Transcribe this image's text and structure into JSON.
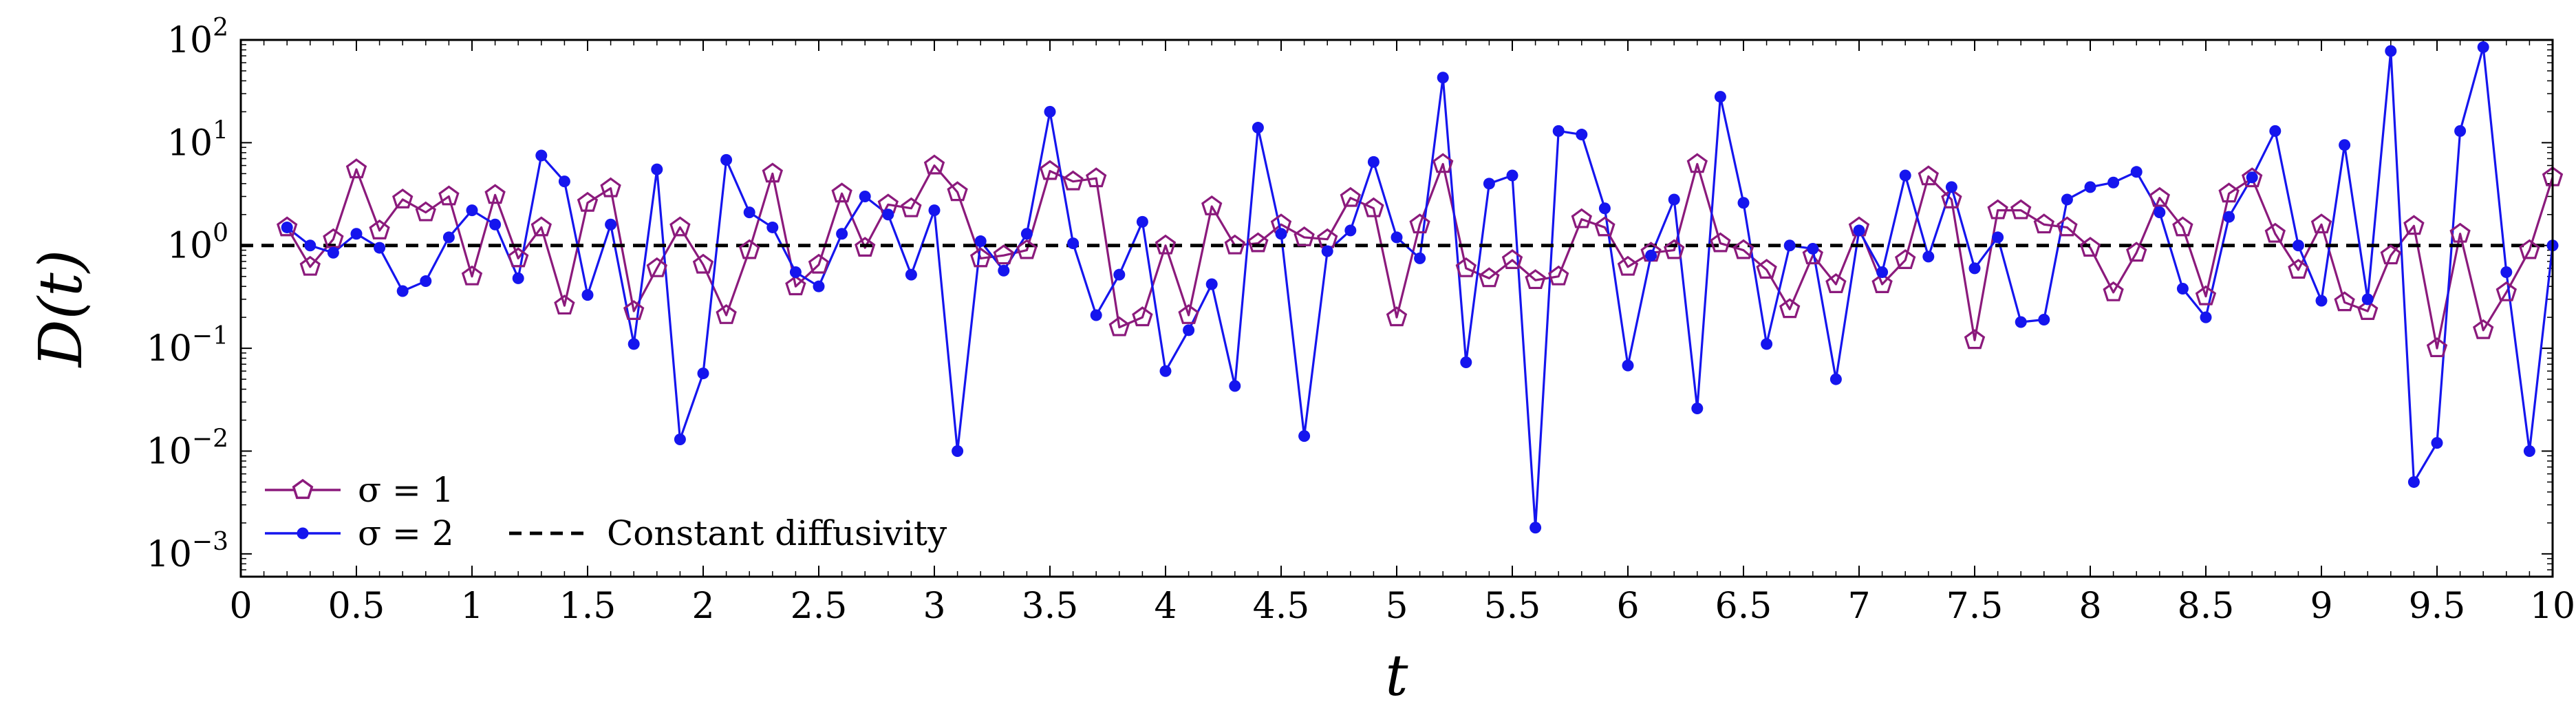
{
  "chart_data": {
    "type": "line",
    "title": "",
    "xlabel": "t",
    "ylabel": "D(t)",
    "xlim": [
      0,
      10
    ],
    "ylim": [
      0.0006,
      100
    ],
    "yscale": "log",
    "x_ticks": [
      0,
      0.5,
      1,
      1.5,
      2,
      2.5,
      3,
      3.5,
      4,
      4.5,
      5,
      5.5,
      6,
      6.5,
      7,
      7.5,
      8,
      8.5,
      9,
      9.5,
      10
    ],
    "x_tick_labels": [
      "0",
      "0.5",
      "1",
      "1.5",
      "2",
      "2.5",
      "3",
      "3.5",
      "4",
      "4.5",
      "5",
      "5.5",
      "6",
      "6.5",
      "7",
      "7.5",
      "8",
      "8.5",
      "9",
      "9.5",
      "10"
    ],
    "y_ticks": [
      {
        "value": 0.001,
        "base": "10",
        "exp": "−3"
      },
      {
        "value": 0.01,
        "base": "10",
        "exp": "−2"
      },
      {
        "value": 0.1,
        "base": "10",
        "exp": "−1"
      },
      {
        "value": 1,
        "base": "10",
        "exp": "0"
      },
      {
        "value": 10,
        "base": "10",
        "exp": "1"
      },
      {
        "value": 100,
        "base": "10",
        "exp": "2"
      }
    ],
    "legend_position": "bottom-left",
    "series": [
      {
        "name": "σ = 1",
        "legend_label": "σ = 1",
        "color": "#8b1a7c",
        "marker": "pentagon",
        "x": [
          0.2,
          0.3,
          0.4,
          0.5,
          0.6,
          0.7,
          0.8,
          0.9,
          1.0,
          1.1,
          1.2,
          1.3,
          1.4,
          1.5,
          1.6,
          1.7,
          1.8,
          1.9,
          2.0,
          2.1,
          2.2,
          2.3,
          2.4,
          2.5,
          2.6,
          2.7,
          2.8,
          2.9,
          3.0,
          3.1,
          3.2,
          3.3,
          3.4,
          3.5,
          3.6,
          3.7,
          3.8,
          3.9,
          4.0,
          4.1,
          4.2,
          4.3,
          4.4,
          4.5,
          4.6,
          4.7,
          4.8,
          4.9,
          5.0,
          5.1,
          5.2,
          5.3,
          5.4,
          5.5,
          5.6,
          5.7,
          5.8,
          5.9,
          6.0,
          6.1,
          6.2,
          6.3,
          6.4,
          6.5,
          6.6,
          6.7,
          6.8,
          6.9,
          7.0,
          7.1,
          7.2,
          7.3,
          7.4,
          7.5,
          7.6,
          7.7,
          7.8,
          7.9,
          8.0,
          8.1,
          8.2,
          8.3,
          8.4,
          8.5,
          8.6,
          8.7,
          8.8,
          8.9,
          9.0,
          9.1,
          9.2,
          9.3,
          9.4,
          9.5,
          9.6,
          9.7,
          9.8,
          9.9,
          10.0
        ],
        "values": [
          1.5,
          0.62,
          1.15,
          5.5,
          1.4,
          2.8,
          2.1,
          3.0,
          0.5,
          3.1,
          0.75,
          1.5,
          0.26,
          2.6,
          3.6,
          0.23,
          0.6,
          1.5,
          0.65,
          0.21,
          0.9,
          5.0,
          0.4,
          0.65,
          3.2,
          0.95,
          2.5,
          2.3,
          6.0,
          3.3,
          0.75,
          0.8,
          0.9,
          5.3,
          4.2,
          4.5,
          0.16,
          0.2,
          1.0,
          0.21,
          2.4,
          1.0,
          1.05,
          1.6,
          1.2,
          1.15,
          2.9,
          2.3,
          0.2,
          1.6,
          6.2,
          0.6,
          0.48,
          0.72,
          0.46,
          0.5,
          1.8,
          1.5,
          0.62,
          0.85,
          0.9,
          6.2,
          1.05,
          0.9,
          0.58,
          0.24,
          0.8,
          0.42,
          1.5,
          0.42,
          0.72,
          4.7,
          2.8,
          0.12,
          2.2,
          2.2,
          1.6,
          1.5,
          0.95,
          0.35,
          0.85,
          2.9,
          1.5,
          0.32,
          3.2,
          4.5,
          1.3,
          0.58,
          1.6,
          0.28,
          0.23,
          0.8,
          1.55,
          0.1,
          1.3,
          0.15,
          0.35,
          0.9,
          4.6
        ]
      },
      {
        "name": "σ = 2",
        "legend_label": "σ = 2",
        "color": "#1515ee",
        "marker": "dot",
        "x": [
          0.2,
          0.3,
          0.4,
          0.5,
          0.6,
          0.7,
          0.8,
          0.9,
          1.0,
          1.1,
          1.2,
          1.3,
          1.4,
          1.5,
          1.6,
          1.7,
          1.8,
          1.9,
          2.0,
          2.1,
          2.2,
          2.3,
          2.4,
          2.5,
          2.6,
          2.7,
          2.8,
          2.9,
          3.0,
          3.1,
          3.2,
          3.3,
          3.4,
          3.5,
          3.6,
          3.7,
          3.8,
          3.9,
          4.0,
          4.1,
          4.2,
          4.3,
          4.4,
          4.5,
          4.6,
          4.7,
          4.8,
          4.9,
          5.0,
          5.1,
          5.2,
          5.3,
          5.4,
          5.5,
          5.6,
          5.7,
          5.8,
          5.9,
          6.0,
          6.1,
          6.2,
          6.3,
          6.4,
          6.5,
          6.6,
          6.7,
          6.8,
          6.9,
          7.0,
          7.1,
          7.2,
          7.3,
          7.4,
          7.5,
          7.6,
          7.7,
          7.8,
          7.9,
          8.0,
          8.1,
          8.2,
          8.3,
          8.4,
          8.5,
          8.6,
          8.7,
          8.8,
          8.9,
          9.0,
          9.1,
          9.2,
          9.3,
          9.4,
          9.5,
          9.6,
          9.7,
          9.8,
          9.9,
          10.0
        ],
        "values": [
          1.5,
          1.0,
          0.85,
          1.3,
          0.95,
          0.36,
          0.45,
          1.2,
          2.2,
          1.6,
          0.48,
          7.5,
          4.2,
          0.33,
          1.6,
          0.11,
          5.5,
          0.013,
          0.057,
          6.8,
          2.1,
          1.5,
          0.55,
          0.4,
          1.3,
          3.0,
          2.0,
          0.52,
          2.2,
          0.01,
          1.1,
          0.57,
          1.3,
          20.0,
          1.05,
          0.21,
          0.52,
          1.7,
          0.06,
          0.15,
          0.42,
          0.043,
          14.0,
          1.3,
          0.014,
          0.88,
          1.4,
          6.5,
          1.2,
          0.75,
          43.0,
          0.073,
          4.0,
          4.8,
          0.0018,
          13.0,
          12.0,
          2.3,
          0.068,
          0.8,
          2.8,
          0.026,
          28.0,
          2.6,
          0.11,
          1.0,
          0.93,
          0.05,
          1.4,
          0.55,
          4.8,
          0.78,
          3.7,
          0.6,
          1.2,
          0.18,
          0.19,
          2.8,
          3.7,
          4.1,
          5.2,
          2.1,
          0.38,
          0.2,
          1.9,
          4.6,
          13.0,
          1.0,
          0.29,
          9.5,
          0.3,
          78.0,
          0.005,
          0.012,
          13.0,
          85.0,
          0.55,
          0.01,
          1.0
        ]
      },
      {
        "name": "Constant diffusivity",
        "legend_label": "Constant diffusivity",
        "color": "#000000",
        "marker": "none",
        "style": "dashed",
        "x": [
          0,
          10
        ],
        "values": [
          1,
          1
        ]
      }
    ]
  }
}
